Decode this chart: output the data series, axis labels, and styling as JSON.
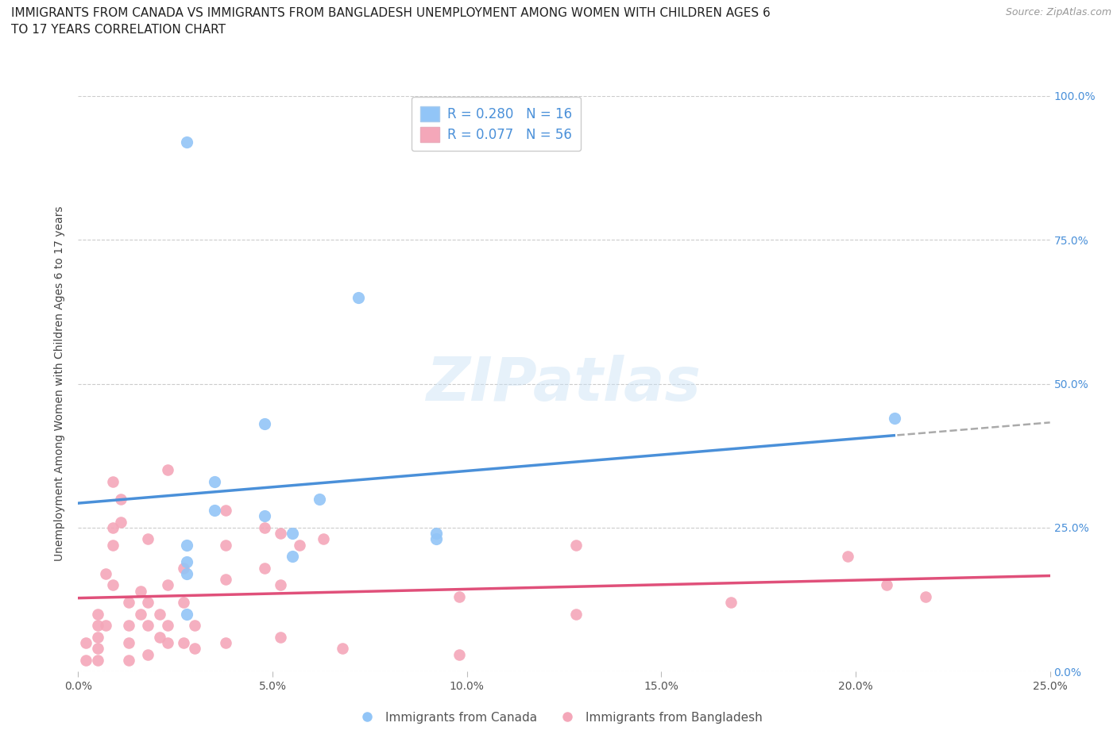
{
  "title": "IMMIGRANTS FROM CANADA VS IMMIGRANTS FROM BANGLADESH UNEMPLOYMENT AMONG WOMEN WITH CHILDREN AGES 6\nTO 17 YEARS CORRELATION CHART",
  "source": "Source: ZipAtlas.com",
  "ylabel": "Unemployment Among Women with Children Ages 6 to 17 years",
  "canada_color": "#92C5F7",
  "canada_color_line": "#4A90D9",
  "bangladesh_color": "#F4A7B9",
  "bangladesh_color_line": "#E0507A",
  "trendline_dashed_color": "#AAAAAA",
  "canada_R": 0.28,
  "canada_N": 16,
  "bangladesh_R": 0.077,
  "bangladesh_N": 56,
  "watermark": "ZIPatlas",
  "legend_label_canada": "Immigrants from Canada",
  "legend_label_bangladesh": "Immigrants from Bangladesh",
  "xlim": [
    0.0,
    0.25
  ],
  "ylim": [
    0.0,
    1.0
  ],
  "x_ticks": [
    0.0,
    0.05,
    0.1,
    0.15,
    0.2,
    0.25
  ],
  "x_tick_labels": [
    "0.0%",
    "5.0%",
    "10.0%",
    "15.0%",
    "20.0%",
    "25.0%"
  ],
  "y_ticks": [
    0.0,
    0.25,
    0.5,
    0.75,
    1.0
  ],
  "y_tick_labels_right": [
    "0.0%",
    "25.0%",
    "50.0%",
    "75.0%",
    "100.0%"
  ],
  "canada_x": [
    0.028,
    0.028,
    0.028,
    0.028,
    0.028,
    0.035,
    0.035,
    0.048,
    0.048,
    0.055,
    0.055,
    0.062,
    0.072,
    0.092,
    0.092,
    0.21
  ],
  "canada_y": [
    0.92,
    0.22,
    0.19,
    0.17,
    0.1,
    0.33,
    0.28,
    0.43,
    0.27,
    0.24,
    0.2,
    0.3,
    0.65,
    0.24,
    0.23,
    0.44
  ],
  "bangladesh_x": [
    0.002,
    0.002,
    0.005,
    0.005,
    0.005,
    0.005,
    0.005,
    0.007,
    0.007,
    0.009,
    0.009,
    0.009,
    0.009,
    0.011,
    0.011,
    0.013,
    0.013,
    0.013,
    0.013,
    0.016,
    0.016,
    0.018,
    0.018,
    0.018,
    0.018,
    0.021,
    0.021,
    0.023,
    0.023,
    0.023,
    0.023,
    0.027,
    0.027,
    0.027,
    0.03,
    0.03,
    0.038,
    0.038,
    0.038,
    0.038,
    0.048,
    0.048,
    0.052,
    0.052,
    0.052,
    0.057,
    0.063,
    0.068,
    0.098,
    0.098,
    0.128,
    0.128,
    0.168,
    0.198,
    0.208,
    0.218
  ],
  "bangladesh_y": [
    0.05,
    0.02,
    0.1,
    0.08,
    0.06,
    0.04,
    0.02,
    0.17,
    0.08,
    0.33,
    0.25,
    0.22,
    0.15,
    0.3,
    0.26,
    0.12,
    0.08,
    0.05,
    0.02,
    0.14,
    0.1,
    0.23,
    0.12,
    0.08,
    0.03,
    0.1,
    0.06,
    0.35,
    0.15,
    0.08,
    0.05,
    0.18,
    0.12,
    0.05,
    0.08,
    0.04,
    0.28,
    0.22,
    0.16,
    0.05,
    0.25,
    0.18,
    0.24,
    0.15,
    0.06,
    0.22,
    0.23,
    0.04,
    0.13,
    0.03,
    0.22,
    0.1,
    0.12,
    0.2,
    0.15,
    0.13
  ]
}
